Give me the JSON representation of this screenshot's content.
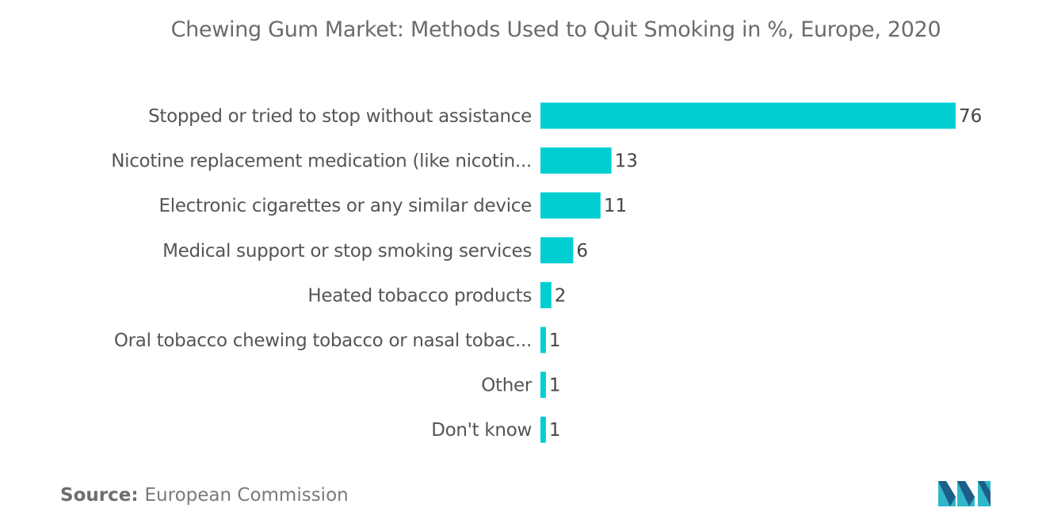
{
  "title": "Chewing Gum Market: Methods Used to Quit Smoking in %, Europe, 2020",
  "source": {
    "label": "Source:",
    "text": "European Commission"
  },
  "logo": {
    "icon": "mordor-intelligence-logo-icon",
    "colors": [
      "#2fb7c9",
      "#1d5f8a"
    ]
  },
  "chart_data": {
    "type": "bar",
    "orientation": "horizontal",
    "categories": [
      "Stopped or tried to stop without assistance",
      "Nicotine replacement medication (like nicotin...",
      "Electronic cigarettes or any similar device",
      "Medical support or stop smoking services",
      "Heated tobacco products",
      "Oral tobacco chewing tobacco or nasal tobac...",
      "Other",
      "Don't know"
    ],
    "values": [
      76,
      13,
      11,
      6,
      2,
      1,
      1,
      1
    ],
    "title": "Chewing Gum Market: Methods Used to Quit Smoking in %, Europe, 2020",
    "xlabel": "",
    "ylabel": "",
    "xlim": [
      0,
      76
    ],
    "grid": false,
    "legend": "none",
    "bar_color": "#00ced1"
  }
}
